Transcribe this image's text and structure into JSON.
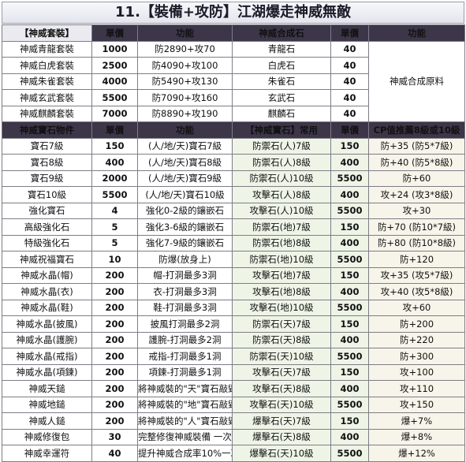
{
  "title": "11.【裝備+攻防】江湖爆走神威無敵",
  "section1": {
    "headers": [
      "【神威套裝】",
      "單價",
      "功能",
      "神威合成石",
      "單價",
      "功能"
    ],
    "rows": [
      {
        "name": "神威青龍套裝",
        "price": "1000",
        "func": "防2890+攻70",
        "stone": "青龍石",
        "stone_price": "40"
      },
      {
        "name": "神威白虎套裝",
        "price": "2500",
        "func": "防4090+攻100",
        "stone": "白虎石",
        "stone_price": "40"
      },
      {
        "name": "神威朱雀套裝",
        "price": "4000",
        "func": "防5490+攻130",
        "stone": "朱雀石",
        "stone_price": "40"
      },
      {
        "name": "神威玄武套裝",
        "price": "5500",
        "func": "防7090+攻160",
        "stone": "玄武石",
        "stone_price": "40"
      },
      {
        "name": "神威麒麟套裝",
        "price": "7000",
        "func": "防8890+攻190",
        "stone": "麒麟石",
        "stone_price": "40"
      }
    ],
    "shared_func": "神威合成原料"
  },
  "section2": {
    "headers": [
      "神威寶石物件",
      "單價",
      "功能",
      "【神威寶石】常用",
      "單價",
      "CP值推薦8級或10級"
    ],
    "rows": [
      {
        "name": "寶石7級",
        "price": "150",
        "func": "(人/地/天)寶石7級",
        "gem": "防禦石(人)7級",
        "gem_price": "150",
        "effect": "防+35 (防5*7級)"
      },
      {
        "name": "寶石8級",
        "price": "400",
        "func": "(人/地/天)寶石8級",
        "gem": "防禦石(人)8級",
        "gem_price": "400",
        "effect": "防+40 (防5*8級)"
      },
      {
        "name": "寶石9級",
        "price": "2000",
        "func": "(人/地/天)寶石9級",
        "gem": "防禦石(人)10級",
        "gem_price": "5500",
        "effect": "防+60"
      },
      {
        "name": "寶石10級",
        "price": "5500",
        "func": "(人/地/天)寶石10級",
        "gem": "攻擊石(人)8級",
        "gem_price": "400",
        "effect": "攻+24 (攻3*8級)"
      },
      {
        "name": "強化寶石",
        "price": "4",
        "func": "強化0-2級的鑲嵌石",
        "gem": "攻擊石(人)10級",
        "gem_price": "5500",
        "effect": "攻+30"
      },
      {
        "name": "高級強化石",
        "price": "5",
        "func": "強化3-6級的鑲嵌石",
        "gem": "防禦石(地)7級",
        "gem_price": "150",
        "effect": "防+70 (防10*7級)"
      },
      {
        "name": "特級強化石",
        "price": "5",
        "func": "強化7-9級的鑲嵌石",
        "gem": "防禦石(地)8級",
        "gem_price": "400",
        "effect": "防+80 (防10*8級)"
      },
      {
        "name": "神威祝福寶石",
        "price": "10",
        "func": "防爆(放身上)",
        "gem": "防禦石(地)10級",
        "gem_price": "5500",
        "effect": "防+120"
      },
      {
        "name": "神威水晶(帽)",
        "price": "200",
        "func": "帽-打洞最多3洞",
        "gem": "攻擊石(地)7級",
        "gem_price": "150",
        "effect": "攻+35 (攻5*7級)"
      },
      {
        "name": "神威水晶(衣)",
        "price": "200",
        "func": "衣-打洞最多3洞",
        "gem": "攻擊石(地)8級",
        "gem_price": "400",
        "effect": "攻+40 (攻5*8級)"
      },
      {
        "name": "神威水晶(鞋)",
        "price": "200",
        "func": "鞋-打洞最多3洞",
        "gem": "攻擊石(地)10級",
        "gem_price": "5500",
        "effect": "攻+60"
      },
      {
        "name": "神威水晶(披風)",
        "price": "200",
        "func": "披風打洞最多2洞",
        "gem": "防禦石(天)7級",
        "gem_price": "150",
        "effect": "防+200"
      },
      {
        "name": "神威水晶(護腕)",
        "price": "200",
        "func": "護腕-打洞最多2洞",
        "gem": "防禦石(天)8級",
        "gem_price": "400",
        "effect": "防+220"
      },
      {
        "name": "神威水晶(戒指)",
        "price": "200",
        "func": "戒指-打洞最多1洞",
        "gem": "防禦石(天)10級",
        "gem_price": "5500",
        "effect": "防+300"
      },
      {
        "name": "神威水晶(項鍊)",
        "price": "200",
        "func": "項鍊-打洞最多1洞",
        "gem": "攻擊石(天)7級",
        "gem_price": "150",
        "effect": "攻+100"
      },
      {
        "name": "神威天鎚",
        "price": "200",
        "func": "將神威裝的\"天\"寶石敲毀",
        "gem": "攻擊石(天)8級",
        "gem_price": "400",
        "effect": "攻+110"
      },
      {
        "name": "神威地鎚",
        "price": "200",
        "func": "將神威裝的\"地\"寶石敲毀",
        "gem": "攻擊石(天)10級",
        "gem_price": "5500",
        "effect": "攻+150"
      },
      {
        "name": "神威人鎚",
        "price": "200",
        "func": "將神威裝的\"人\"寶石敲毀",
        "gem": "爆擊石(天)7級",
        "gem_price": "150",
        "effect": "爆+7%"
      },
      {
        "name": "神威修復包",
        "price": "30",
        "func": "完整修復神威裝備 一次",
        "gem": "爆擊石(天)8級",
        "gem_price": "400",
        "effect": "爆+8%"
      },
      {
        "name": "神威幸運符",
        "price": "40",
        "func": "提升神威合成率10%一次",
        "gem": "爆擊石(天)10級",
        "gem_price": "5500",
        "effect": "爆+12%"
      }
    ]
  }
}
